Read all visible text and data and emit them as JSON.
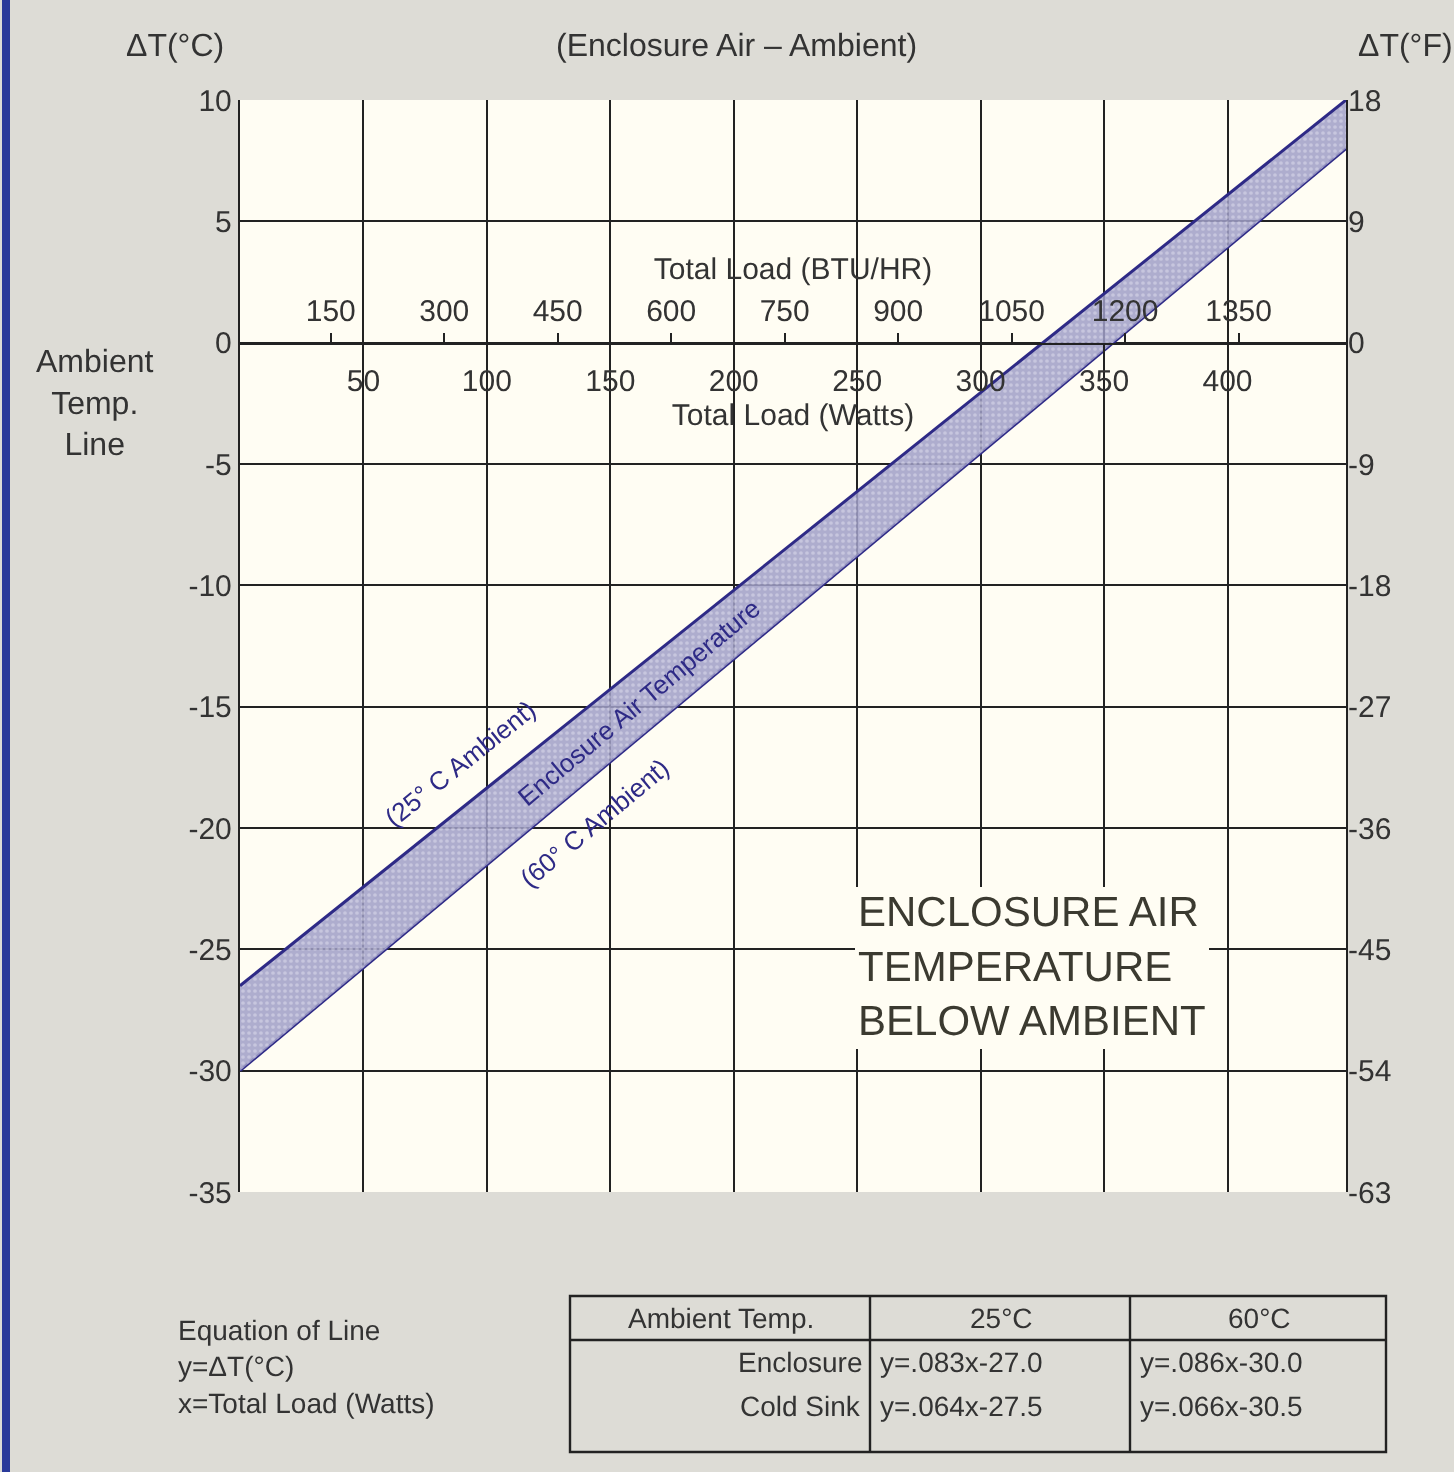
{
  "chart_data": {
    "type": "line",
    "title": "(Enclosure Air – Ambient)",
    "ylabel": "ΔT(°C)",
    "y2label": "ΔT(°F)",
    "xlabel": "Total Load (Watts)",
    "x2label": "Total Load (BTU/HR)",
    "x": [
      0,
      448
    ],
    "series": [
      {
        "name": "(60° C Ambient)",
        "color": "#2e2a86",
        "values": [
          -30,
          8
        ]
      },
      {
        "name": "(25° C Ambient)",
        "color": "#2e2a86",
        "values": [
          -26.5,
          10
        ],
        "lower": [
          -30,
          8
        ],
        "upper": [
          -26.5,
          10
        ]
      }
    ],
    "xlim": [
      0,
      448
    ],
    "xticks": [
      50,
      100,
      150,
      200,
      250,
      300,
      350,
      400
    ],
    "x2lim": [
      30,
      1492
    ],
    "x2ticks": [
      150,
      300,
      450,
      600,
      750,
      900,
      1050,
      1200,
      1350
    ],
    "ylim": [
      -35,
      10
    ],
    "yticks": [
      -35,
      -30,
      -25,
      -20,
      -15,
      -10,
      -5,
      0,
      5,
      10
    ],
    "y2lim": [
      -63,
      18
    ],
    "y2ticks": [
      -63,
      -54,
      -45,
      -36,
      -27,
      -18,
      -9,
      0,
      9,
      18
    ],
    "grid": true,
    "legend": false,
    "marker": "none",
    "line_style": "solid",
    "annotations": [
      "Ambient\nTemp.\nLine",
      "Enclosure Air Temperature",
      "ENCLOSURE AIR\nTEMPERATURE\nBELOW AMBIENT",
      "Equation of Line\ny=ΔT(°C)\nx=Total Load (Watts)",
      "Ambient Temp.",
      "25°C",
      "60°C",
      "Enclosure",
      "y=.083x-27.0",
      "y=.086x-30.0",
      "Cold Sink",
      "y=.064x-27.5",
      "y=.066x-30.5"
    ]
  }
}
